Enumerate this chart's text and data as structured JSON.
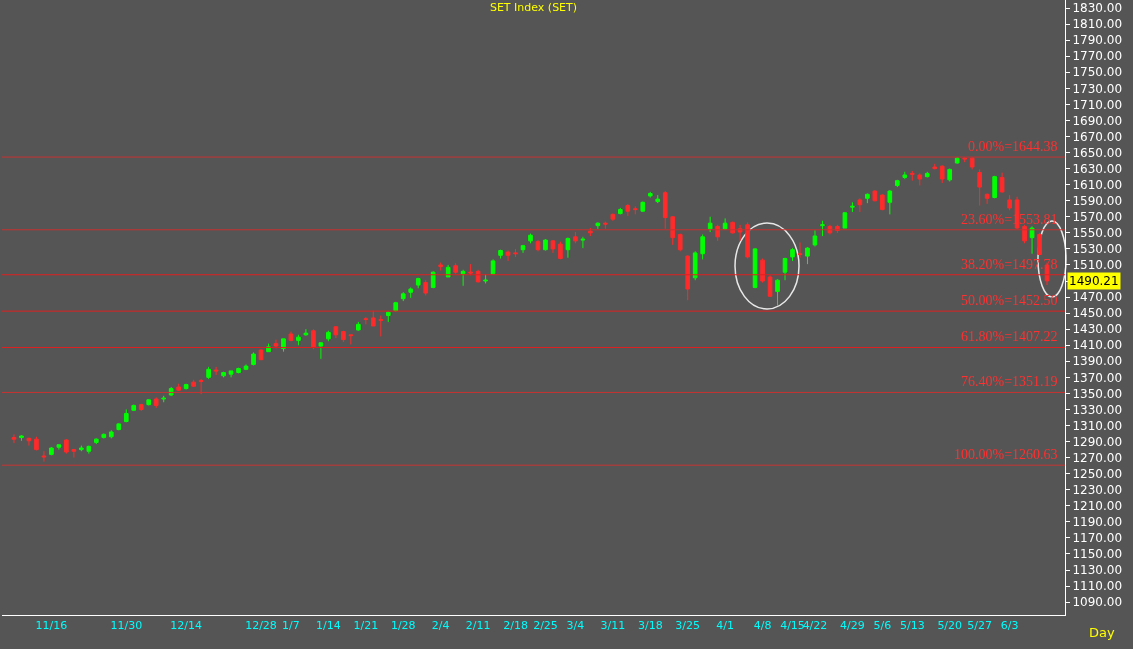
{
  "chart_data": {
    "type": "candlestick",
    "title": "SET Index (SET)",
    "xlabel": "Day",
    "categories": [
      null,
      null,
      null,
      null,
      null,
      "11/16",
      null,
      null,
      null,
      null,
      null,
      null,
      null,
      null,
      null,
      "11/30",
      null,
      null,
      null,
      null,
      null,
      null,
      null,
      "12/14",
      null,
      null,
      null,
      null,
      null,
      null,
      null,
      null,
      null,
      "12/28",
      null,
      null,
      null,
      "1/7",
      null,
      null,
      null,
      null,
      "1/14",
      null,
      null,
      null,
      null,
      "1/21",
      null,
      null,
      null,
      null,
      "1/28",
      null,
      null,
      null,
      null,
      "2/4",
      null,
      null,
      null,
      null,
      "2/11",
      null,
      null,
      null,
      null,
      "2/18",
      null,
      null,
      null,
      "2/25",
      null,
      null,
      null,
      "3/4",
      null,
      null,
      null,
      null,
      "3/11",
      null,
      null,
      null,
      null,
      "3/18",
      null,
      null,
      null,
      null,
      "3/25",
      null,
      null,
      null,
      null,
      "4/1",
      null,
      null,
      null,
      null,
      "4/8",
      null,
      null,
      null,
      "4/15",
      null,
      null,
      "4/22",
      null,
      null,
      null,
      null,
      "4/29",
      null,
      null,
      null,
      "5/6",
      null,
      null,
      null,
      "5/13",
      null,
      null,
      null,
      null,
      "5/20",
      null,
      null,
      null,
      "5/27",
      null,
      null,
      null,
      "6/3",
      null,
      null,
      null,
      null,
      null
    ],
    "ohlc": [
      [
        1295,
        1299,
        1288,
        1293
      ],
      [
        1295,
        1298,
        1291,
        1297
      ],
      [
        1294,
        1295,
        1285,
        1291
      ],
      [
        1293,
        1296,
        1279,
        1280
      ],
      [
        1272,
        1278,
        1265,
        1271
      ],
      [
        1274,
        1283,
        1273,
        1282
      ],
      [
        1283,
        1287,
        1280,
        1286
      ],
      [
        1292,
        1293,
        1275,
        1277
      ],
      [
        1280,
        1281,
        1270,
        1278
      ],
      [
        1280,
        1285,
        1278,
        1282
      ],
      [
        1278,
        1285,
        1275,
        1284
      ],
      [
        1289,
        1294,
        1287,
        1293
      ],
      [
        1295,
        1300,
        1294,
        1299
      ],
      [
        1296,
        1304,
        1294,
        1302
      ],
      [
        1305,
        1313,
        1304,
        1312
      ],
      [
        1315,
        1330,
        1314,
        1325
      ],
      [
        1329,
        1336,
        1328,
        1335
      ],
      [
        1336,
        1337,
        1328,
        1330
      ],
      [
        1336,
        1343,
        1335,
        1342
      ],
      [
        1343,
        1345,
        1332,
        1335
      ],
      [
        1343,
        1347,
        1339,
        1344
      ],
      [
        1348,
        1358,
        1347,
        1356
      ],
      [
        1358,
        1362,
        1353,
        1354
      ],
      [
        1356,
        1362,
        1355,
        1361
      ],
      [
        1364,
        1367,
        1358,
        1359
      ],
      [
        1366,
        1368,
        1349,
        1365
      ],
      [
        1370,
        1383,
        1368,
        1380
      ],
      [
        1379,
        1383,
        1373,
        1378
      ],
      [
        1372,
        1377,
        1370,
        1376
      ],
      [
        1374,
        1378,
        1370,
        1378
      ],
      [
        1376,
        1382,
        1375,
        1381
      ],
      [
        1380,
        1386,
        1379,
        1384
      ],
      [
        1386,
        1401,
        1385,
        1399
      ],
      [
        1404,
        1405,
        1392,
        1392
      ],
      [
        1402,
        1412,
        1402,
        1408
      ],
      [
        1412,
        1417,
        1406,
        1409
      ],
      [
        1406,
        1418,
        1402,
        1418
      ],
      [
        1424,
        1427,
        1415,
        1416
      ],
      [
        1416,
        1423,
        1410,
        1420
      ],
      [
        1423,
        1430,
        1422,
        1425
      ],
      [
        1428,
        1430,
        1405,
        1407
      ],
      [
        1409,
        1414,
        1393,
        1413
      ],
      [
        1418,
        1428,
        1415,
        1426
      ],
      [
        1433,
        1434,
        1419,
        1423
      ],
      [
        1427,
        1428,
        1414,
        1417
      ],
      [
        1423,
        1423,
        1411,
        1422
      ],
      [
        1429,
        1439,
        1428,
        1436
      ],
      [
        1443,
        1445,
        1436,
        1442
      ],
      [
        1444,
        1453,
        1434,
        1434
      ],
      [
        1442,
        1447,
        1421,
        1441
      ],
      [
        1447,
        1452,
        1439,
        1451
      ],
      [
        1453,
        1464,
        1452,
        1463
      ],
      [
        1468,
        1476,
        1465,
        1474
      ],
      [
        1476,
        1482,
        1469,
        1480
      ],
      [
        1485,
        1494,
        1481,
        1493
      ],
      [
        1488,
        1491,
        1472,
        1475
      ],
      [
        1482,
        1502,
        1481,
        1501
      ],
      [
        1510,
        1513,
        1503,
        1508
      ],
      [
        1495,
        1510,
        1495,
        1507
      ],
      [
        1509,
        1512,
        1499,
        1501
      ],
      [
        1499,
        1504,
        1484,
        1502
      ],
      [
        1501,
        1511,
        1497,
        1500
      ],
      [
        1502,
        1504,
        1488,
        1489
      ],
      [
        1490,
        1498,
        1487,
        1491
      ],
      [
        1499,
        1517,
        1498,
        1515
      ],
      [
        1522,
        1529,
        1518,
        1528
      ],
      [
        1526,
        1528,
        1515,
        1522
      ],
      [
        1525,
        1530,
        1520,
        1524
      ],
      [
        1529,
        1535,
        1525,
        1534
      ],
      [
        1540,
        1549,
        1537,
        1547
      ],
      [
        1539,
        1541,
        1527,
        1529
      ],
      [
        1529,
        1542,
        1528,
        1541
      ],
      [
        1540,
        1541,
        1525,
        1530
      ],
      [
        1536,
        1539,
        1517,
        1518
      ],
      [
        1529,
        1544,
        1519,
        1543
      ],
      [
        1545,
        1551,
        1537,
        1540
      ],
      [
        1541,
        1545,
        1531,
        1542
      ],
      [
        1552,
        1556,
        1546,
        1550
      ],
      [
        1559,
        1563,
        1555,
        1562
      ],
      [
        1562,
        1564,
        1555,
        1561
      ],
      [
        1573,
        1574,
        1565,
        1567
      ],
      [
        1574,
        1581,
        1573,
        1579
      ],
      [
        1584,
        1586,
        1571,
        1577
      ],
      [
        1580,
        1583,
        1573,
        1579
      ],
      [
        1577,
        1589,
        1576,
        1588
      ],
      [
        1596,
        1601,
        1594,
        1599
      ],
      [
        1589,
        1597,
        1587,
        1592
      ],
      [
        1600,
        1602,
        1555,
        1569
      ],
      [
        1570,
        1571,
        1535,
        1544
      ],
      [
        1548,
        1549,
        1527,
        1529
      ],
      [
        1521,
        1522,
        1466,
        1480
      ],
      [
        1494,
        1527,
        1491,
        1525
      ],
      [
        1524,
        1548,
        1517,
        1545
      ],
      [
        1555,
        1570,
        1551,
        1562
      ],
      [
        1558,
        1560,
        1540,
        1545
      ],
      [
        1555,
        1568,
        1554,
        1562
      ],
      [
        1563,
        1564,
        1549,
        1550
      ],
      [
        1555,
        1560,
        1540,
        1551
      ],
      [
        1560,
        1563,
        1518,
        1520
      ],
      [
        1482,
        1531,
        1481,
        1530
      ],
      [
        1516,
        1518,
        1488,
        1490
      ],
      [
        1495,
        1497,
        1470,
        1471
      ],
      [
        1477,
        1492,
        1459,
        1491
      ],
      [
        1501,
        1519,
        1491,
        1518
      ],
      [
        1520,
        1531,
        1515,
        1529
      ],
      [
        1524,
        1538,
        1519,
        1523
      ],
      [
        1521,
        1532,
        1511,
        1531
      ],
      [
        1535,
        1553,
        1533,
        1546
      ],
      [
        1559,
        1565,
        1546,
        1560
      ],
      [
        1558,
        1560,
        1548,
        1550
      ],
      [
        1558,
        1560,
        1550,
        1553
      ],
      [
        1556,
        1576,
        1556,
        1575
      ],
      [
        1582,
        1588,
        1576,
        1583
      ],
      [
        1591,
        1593,
        1576,
        1585
      ],
      [
        1593,
        1599,
        1587,
        1598
      ],
      [
        1602,
        1603,
        1589,
        1590
      ],
      [
        1597,
        1598,
        1578,
        1579
      ],
      [
        1588,
        1603,
        1573,
        1602
      ],
      [
        1609,
        1616,
        1607,
        1615
      ],
      [
        1619,
        1626,
        1617,
        1622
      ],
      [
        1624,
        1627,
        1615,
        1623
      ],
      [
        1622,
        1624,
        1609,
        1617
      ],
      [
        1620,
        1626,
        1619,
        1624
      ],
      [
        1632,
        1636,
        1629,
        1630
      ],
      [
        1633,
        1634,
        1612,
        1617
      ],
      [
        1616,
        1630,
        1614,
        1629
      ],
      [
        1637,
        1644,
        1636,
        1643
      ],
      [
        1643,
        1644,
        1638,
        1642
      ],
      [
        1643,
        1644,
        1629,
        1632
      ],
      [
        1625,
        1629,
        1584,
        1607
      ],
      [
        1598,
        1599,
        1586,
        1593
      ],
      [
        1594,
        1621,
        1593,
        1620
      ],
      [
        1619,
        1625,
        1600,
        1601
      ],
      [
        1591,
        1597,
        1578,
        1581
      ],
      [
        1591,
        1595,
        1555,
        1556
      ],
      [
        1558,
        1560,
        1537,
        1540
      ],
      [
        1544,
        1558,
        1524,
        1556
      ],
      [
        1548,
        1550,
        1522,
        1523
      ],
      [
        1510,
        1513,
        1485,
        1490.21
      ]
    ],
    "ylim": [
      1074,
      1840
    ],
    "yticks": [
      {
        "value": 1090,
        "label": "1090.00"
      },
      {
        "value": 1110,
        "label": "1110.00"
      },
      {
        "value": 1130,
        "label": "1130.00"
      },
      {
        "value": 1150,
        "label": "1150.00"
      },
      {
        "value": 1170,
        "label": "1170.00"
      },
      {
        "value": 1190,
        "label": "1190.00"
      },
      {
        "value": 1210,
        "label": "1210.00"
      },
      {
        "value": 1230,
        "label": "1230.00"
      },
      {
        "value": 1250,
        "label": "1250.00"
      },
      {
        "value": 1270,
        "label": "1270.00"
      },
      {
        "value": 1290,
        "label": "1290.00"
      },
      {
        "value": 1310,
        "label": "1310.00"
      },
      {
        "value": 1330,
        "label": "1330.00"
      },
      {
        "value": 1350,
        "label": "1350.00"
      },
      {
        "value": 1370,
        "label": "1370.00"
      },
      {
        "value": 1390,
        "label": "1390.00"
      },
      {
        "value": 1410,
        "label": "1410.00"
      },
      {
        "value": 1430,
        "label": "1430.00"
      },
      {
        "value": 1450,
        "label": "1450.00"
      },
      {
        "value": 1470,
        "label": "1470.00"
      },
      {
        "value": 1490,
        "label": null
      },
      {
        "value": 1510,
        "label": "1510.00"
      },
      {
        "value": 1530,
        "label": "1530.00"
      },
      {
        "value": 1550,
        "label": "1550.00"
      },
      {
        "value": 1570,
        "label": "1570.00"
      },
      {
        "value": 1590,
        "label": "1590.00"
      },
      {
        "value": 1610,
        "label": "1610.00"
      },
      {
        "value": 1630,
        "label": "1630.00"
      },
      {
        "value": 1650,
        "label": "1650.00"
      },
      {
        "value": 1670,
        "label": "1670.00"
      },
      {
        "value": 1690,
        "label": "1690.00"
      },
      {
        "value": 1710,
        "label": "1710.00"
      },
      {
        "value": 1730,
        "label": "1730.00"
      },
      {
        "value": 1750,
        "label": "1750.00"
      },
      {
        "value": 1770,
        "label": "1770.00"
      },
      {
        "value": 1790,
        "label": "1790.00"
      },
      {
        "value": 1810,
        "label": "1810.00"
      },
      {
        "value": 1830,
        "label": "1830.00"
      }
    ],
    "grid": false,
    "legend": false,
    "ref_lines": [
      {
        "axis": "y",
        "value": 1644.38,
        "label": "0.00%=1644.38",
        "color": "#c83232"
      },
      {
        "axis": "y",
        "value": 1553.81,
        "label": "23.60%=1553.81",
        "color": "#c83232"
      },
      {
        "axis": "y",
        "value": 1497.78,
        "label": "38.20%=1497.78",
        "color": "#e02020"
      },
      {
        "axis": "y",
        "value": 1452.5,
        "label": "50.00%=1452.50",
        "color": "#e02020"
      },
      {
        "axis": "y",
        "value": 1407.22,
        "label": "61.80%=1407.22",
        "color": "#e02020"
      },
      {
        "axis": "y",
        "value": 1351.19,
        "label": "76.40%=1351.19",
        "color": "#c83232"
      },
      {
        "axis": "y",
        "value": 1260.63,
        "label": "100.00%=1260.63",
        "color": "#c83232"
      }
    ],
    "annotations": [
      "1490.21"
    ]
  }
}
